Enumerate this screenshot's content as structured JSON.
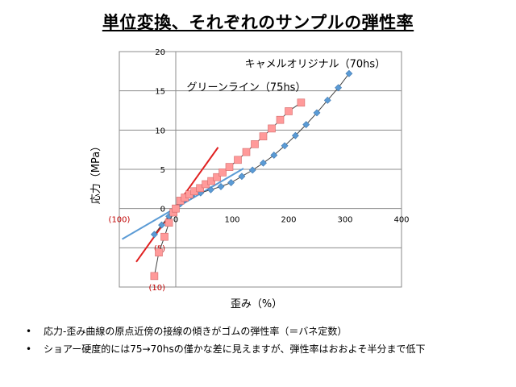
{
  "title": "単位変換、それぞれのサンプルの弾性率",
  "chart_data": {
    "type": "scatter",
    "xlabel": "歪み（%）",
    "ylabel": "応力（MPa）",
    "xlim": [
      -100,
      400
    ],
    "ylim": [
      -10,
      20
    ],
    "x_ticks": [
      -100,
      0,
      100,
      200,
      300,
      400
    ],
    "x_tick_labels": [
      "(100)",
      "0",
      "100",
      "200",
      "300",
      "400"
    ],
    "y_ticks": [
      -10,
      -5,
      0,
      5,
      10,
      15,
      20
    ],
    "y_tick_labels": [
      "(10)",
      "(5)",
      "0",
      "5",
      "10",
      "15",
      "20"
    ],
    "grid": "horizontal",
    "series": [
      {
        "name": "キャメルオリジナル（70hs）",
        "marker": "diamond",
        "color": "#5b9bd5",
        "line_color": "#404040",
        "x": [
          -38,
          -25,
          -12,
          -6,
          0,
          8,
          16,
          28,
          44,
          62,
          80,
          98,
          117,
          136,
          155,
          174,
          193,
          212,
          231,
          250,
          269,
          288,
          307
        ],
        "y": [
          -3.3,
          -2.1,
          -1.0,
          -0.4,
          0,
          0.6,
          1.1,
          1.6,
          2.0,
          2.4,
          2.8,
          3.3,
          4.1,
          4.9,
          5.8,
          6.8,
          8.0,
          9.3,
          10.7,
          12.2,
          13.8,
          15.4,
          17.2
        ]
      },
      {
        "name": "グリーンライン（75hs）",
        "marker": "square",
        "color": "#ff9a9a",
        "line_color": "#404040",
        "x": [
          -38,
          -30,
          -20,
          -12,
          -4,
          0,
          8,
          16,
          24,
          33,
          43,
          53,
          63,
          73,
          83,
          95,
          110,
          125,
          140,
          155,
          170,
          185,
          200,
          222
        ],
        "y": [
          -8.6,
          -5.6,
          -3.6,
          -1.8,
          -0.5,
          0,
          1.0,
          1.4,
          1.8,
          2.2,
          2.6,
          3.1,
          3.5,
          4.0,
          4.6,
          5.3,
          6.2,
          7.2,
          8.2,
          9.2,
          10.2,
          11.3,
          12.4,
          13.5
        ]
      }
    ],
    "tangent_lines": [
      {
        "color": "#e02020",
        "x": [
          -70,
          75
        ],
        "y": [
          -6.8,
          7.8
        ]
      },
      {
        "color": "#5b9bd5",
        "x": [
          -95,
          120
        ],
        "y": [
          -3.9,
          5.1
        ]
      }
    ],
    "annotations": [
      {
        "text": "キャメルオリジナル（70hs）",
        "x": 247,
        "y": 18.0
      },
      {
        "text": "グリーンライン（75hs）",
        "x": 125,
        "y": 15.0
      }
    ]
  },
  "bullets": [
    "応力-歪み曲線の原点近傍の接線の傾きがゴムの弾性率（＝バネ定数）",
    "ショアー硬度的には75→70hsの僅かな差に見えますが、弾性率はおおよそ半分まで低下"
  ],
  "bullet_symbol": "•"
}
